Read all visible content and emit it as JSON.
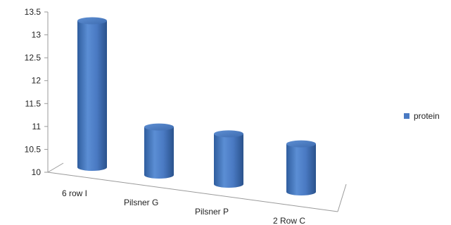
{
  "chart_data": {
    "type": "bar",
    "style": "3d-cylinder",
    "categories": [
      "6 row I",
      "Pilsner G",
      "Pilsner P",
      "2 Row C"
    ],
    "series": [
      {
        "name": "protein",
        "values": [
          13.2,
          11.05,
          11.1,
          11.05
        ],
        "color": "#4a7ac3"
      }
    ],
    "ylim": [
      10,
      13.5
    ],
    "yticks": [
      "10",
      "10.5",
      "11",
      "11.5",
      "12",
      "12.5",
      "13",
      "13.5"
    ],
    "grid": false,
    "legend_position": "right"
  }
}
